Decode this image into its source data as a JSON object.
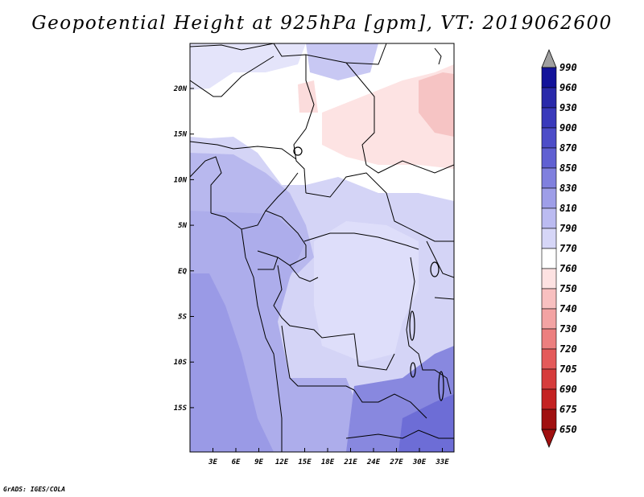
{
  "title": "Geopotential Height at 925hPa [gpm], VT: 2019062600",
  "credit": "GrADS: IGES/COLA",
  "map": {
    "lat_labels": [
      "20N",
      "15N",
      "10N",
      "5N",
      "EQ",
      "5S",
      "10S",
      "15S"
    ],
    "lon_labels": [
      "3E",
      "6E",
      "9E",
      "12E",
      "15E",
      "18E",
      "21E",
      "24E",
      "27E",
      "30E",
      "33E"
    ]
  },
  "colorbar": {
    "levels": [
      "990",
      "960",
      "930",
      "900",
      "870",
      "850",
      "830",
      "810",
      "790",
      "770",
      "760",
      "750",
      "740",
      "730",
      "720",
      "705",
      "690",
      "675",
      "650"
    ],
    "colors": [
      "#a0a0a0",
      "#13139a",
      "#2a2aaa",
      "#3a3abb",
      "#4d4dc8",
      "#6060d2",
      "#8080de",
      "#9e9ee8",
      "#bbbbf1",
      "#d6d6f7",
      "#ffffff",
      "#fde2e2",
      "#f8c0c0",
      "#f3a3a3",
      "#ec7f7f",
      "#e45a5a",
      "#d63c3c",
      "#c42222",
      "#a01010",
      "#a01010"
    ]
  }
}
